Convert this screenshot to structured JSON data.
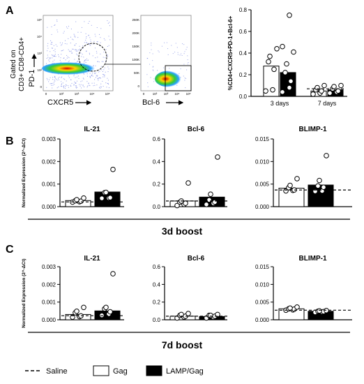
{
  "panel_letters": {
    "a": "A",
    "b": "B",
    "c": "C"
  },
  "flow": {
    "gate_label_line1": "Gated on",
    "gate_label_line2": "CD3+ CD8-CD4+",
    "pd1_axis": "PD-1",
    "cxcr5_axis": "CXCR5",
    "bcl6_axis": "Bcl-6",
    "plot1_y_ticks": [
      "10⁵",
      "10⁴",
      "10³",
      "10²",
      "0"
    ],
    "plot1_x_ticks": [
      "0",
      "10²",
      "10³",
      "10⁴",
      "10⁵"
    ],
    "plot2_y_ticks": [
      "250K",
      "200K",
      "150K",
      "100K",
      "50K",
      "0"
    ],
    "plot2_x_ticks": [
      "0",
      "10²",
      "10³",
      "10⁴",
      "10⁵"
    ]
  },
  "legend": {
    "saline": "Saline",
    "gag": "Gag",
    "lamp": "LAMP/Gag"
  },
  "colors": {
    "gag_fill": "#ffffff",
    "lamp_fill": "#000000",
    "stroke": "#000000"
  },
  "chart_data": [
    {
      "id": "A",
      "type": "bar",
      "ylabel": "%CD4+CXCR5+PD-1+Bcl-6+",
      "categories": [
        "3 days",
        "7 days"
      ],
      "ylim": [
        0,
        0.8
      ],
      "yticks": [
        "0.0",
        "0.2",
        "0.4",
        "0.6",
        "0.8"
      ],
      "series": [
        {
          "name": "Gag",
          "values": [
            0.28,
            0.05
          ],
          "points": [
            [
              0.05,
              0.06,
              0.25,
              0.32,
              0.37,
              0.44
            ],
            [
              0.02,
              0.03,
              0.05,
              0.06,
              0.08,
              0.1
            ]
          ]
        },
        {
          "name": "LAMP/Gag",
          "values": [
            0.22,
            0.06
          ],
          "points": [
            [
              0.04,
              0.08,
              0.14,
              0.22,
              0.3,
              0.41,
              0.46,
              0.75
            ],
            [
              0.03,
              0.04,
              0.05,
              0.07,
              0.09,
              0.1
            ]
          ]
        }
      ],
      "saline": [
        null,
        0.07
      ]
    },
    {
      "id": "B1",
      "type": "bar",
      "title": "IL-21",
      "ylabel": "Normalized Expression (2^-ΔCt)",
      "ylim": [
        0,
        0.003
      ],
      "yticks": [
        "0.000",
        "0.001",
        "0.002",
        "0.003"
      ],
      "series": [
        {
          "name": "Gag",
          "value": 0.00027,
          "points": [
            0.0002,
            0.00022,
            0.00024,
            0.00026,
            0.00031,
            0.00038
          ]
        },
        {
          "name": "LAMP/Gag",
          "value": 0.00065,
          "points": [
            0.00037,
            0.00038,
            0.0004,
            0.00062,
            0.00063,
            0.00165
          ]
        }
      ],
      "saline": 0.00021
    },
    {
      "id": "B2",
      "type": "bar",
      "title": "Bcl-6",
      "ylim": [
        0,
        0.6
      ],
      "yticks": [
        "0.0",
        "0.2",
        "0.4",
        "0.6"
      ],
      "series": [
        {
          "name": "Gag",
          "value": 0.05,
          "points": [
            0.01,
            0.02,
            0.03,
            0.04,
            0.05,
            0.21
          ]
        },
        {
          "name": "LAMP/Gag",
          "value": 0.085,
          "points": [
            0.02,
            0.03,
            0.04,
            0.06,
            0.11,
            0.44
          ]
        }
      ],
      "saline": 0.05
    },
    {
      "id": "B3",
      "type": "bar",
      "title": "BLIMP-1",
      "ylim": [
        0,
        0.015
      ],
      "yticks": [
        "0.000",
        "0.005",
        "0.010",
        "0.015"
      ],
      "series": [
        {
          "name": "Gag",
          "value": 0.0041,
          "points": [
            0.0035,
            0.0036,
            0.0037,
            0.0042,
            0.0047,
            0.0062
          ]
        },
        {
          "name": "LAMP/Gag",
          "value": 0.0048,
          "points": [
            0.0034,
            0.0035,
            0.0043,
            0.0046,
            0.0058,
            0.0113
          ]
        }
      ],
      "saline": 0.0037
    },
    {
      "id": "C1",
      "type": "bar",
      "title": "IL-21",
      "ylabel": "Normalized Expression (2^-ΔCt)",
      "ylim": [
        0,
        0.003
      ],
      "yticks": [
        "0.000",
        "0.001",
        "0.002",
        "0.003"
      ],
      "series": [
        {
          "name": "Gag",
          "value": 0.0003,
          "points": [
            0.00015,
            0.00018,
            0.00022,
            0.0004,
            0.00048,
            0.0007
          ]
        },
        {
          "name": "LAMP/Gag",
          "value": 0.0005,
          "points": [
            0.00025,
            0.00032,
            0.00045,
            0.00062,
            0.0007,
            0.0026
          ]
        }
      ],
      "saline": 0.00023
    },
    {
      "id": "C2",
      "type": "bar",
      "title": "Bcl-6",
      "ylim": [
        0,
        0.6
      ],
      "yticks": [
        "0.0",
        "0.2",
        "0.4",
        "0.6"
      ],
      "series": [
        {
          "name": "Gag",
          "value": 0.04,
          "points": [
            0.02,
            0.03,
            0.04,
            0.05,
            0.06,
            0.07
          ]
        },
        {
          "name": "LAMP/Gag",
          "value": 0.037,
          "points": [
            0.02,
            0.03,
            0.04,
            0.05,
            0.05,
            0.06
          ]
        }
      ],
      "saline": 0.04
    },
    {
      "id": "C3",
      "type": "bar",
      "title": "BLIMP-1",
      "ylim": [
        0,
        0.015
      ],
      "yticks": [
        "0.000",
        "0.005",
        "0.010",
        "0.015"
      ],
      "series": [
        {
          "name": "Gag",
          "value": 0.0031,
          "points": [
            0.0027,
            0.0028,
            0.003,
            0.0031,
            0.0033,
            0.0036
          ]
        },
        {
          "name": "LAMP/Gag",
          "value": 0.0024,
          "points": [
            0.0021,
            0.0022,
            0.0023,
            0.0024,
            0.0025,
            0.0026
          ]
        }
      ],
      "saline": 0.0027
    }
  ],
  "group_labels": {
    "b": "3d boost",
    "c": "7d boost"
  }
}
